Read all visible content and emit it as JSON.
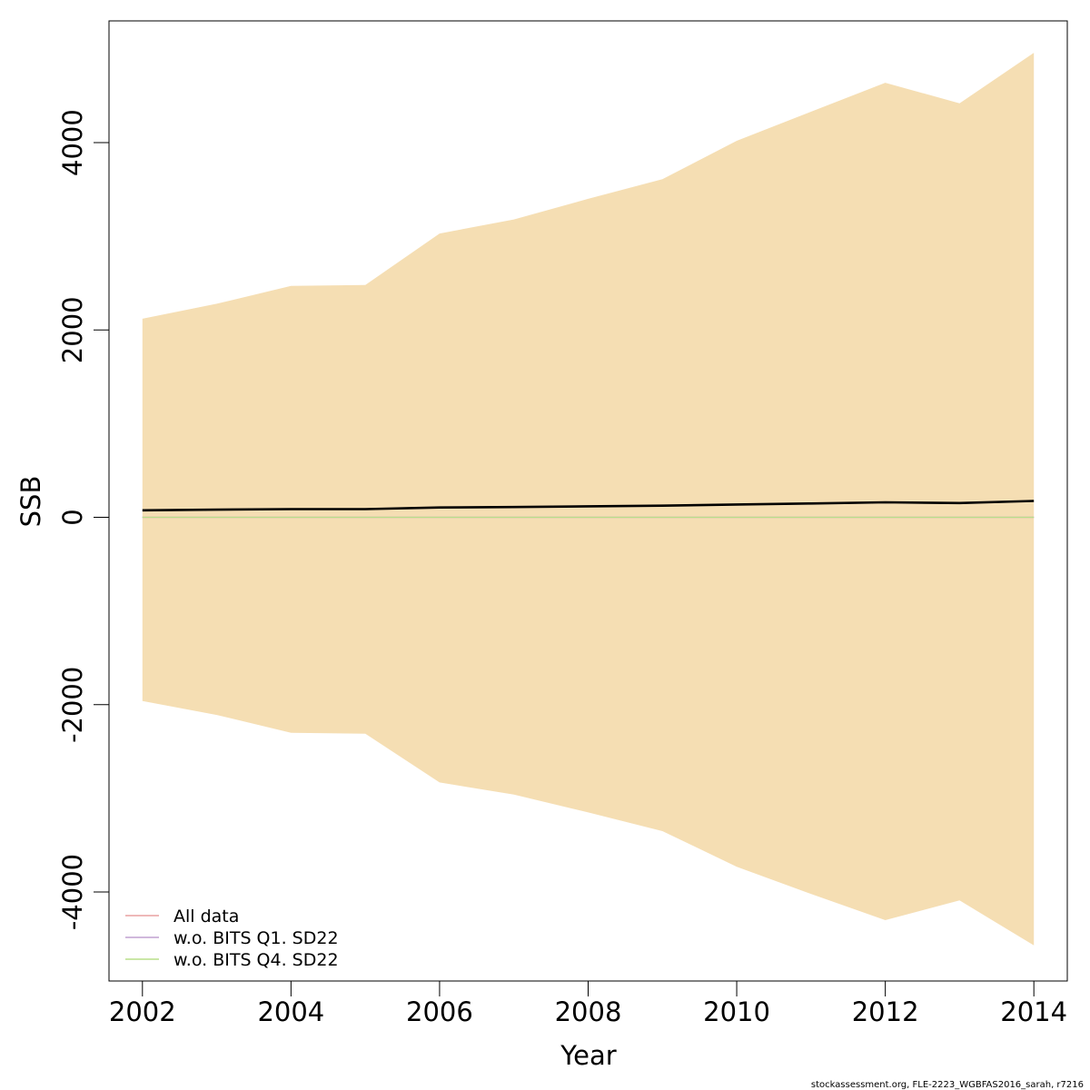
{
  "chart_data": {
    "type": "line",
    "title": "",
    "xlabel": "Year",
    "ylabel": "SSB",
    "xlim": [
      2001.55,
      2014.45
    ],
    "ylim": [
      -4950,
      5300
    ],
    "xticks": [
      2002,
      2004,
      2006,
      2008,
      2010,
      2012,
      2014
    ],
    "xtick_labels": [
      "2002",
      "2004",
      "2006",
      "2008",
      "2010",
      "2012",
      "2014"
    ],
    "yticks": [
      -4000,
      -2000,
      0,
      2000,
      4000
    ],
    "ytick_labels": [
      "-4000",
      "-2000",
      "0",
      "2000",
      "4000"
    ],
    "grid": false,
    "legend_position": "bottom-left",
    "band": {
      "color": "#f5deb3",
      "x": [
        2002,
        2003,
        2004,
        2005,
        2006,
        2007,
        2008,
        2009,
        2010,
        2011,
        2012,
        2013,
        2014
      ],
      "upper": [
        2120,
        2280,
        2470,
        2480,
        3030,
        3180,
        3400,
        3610,
        4020,
        4330,
        4640,
        4420,
        4960
      ],
      "lower": [
        -1960,
        -2110,
        -2300,
        -2310,
        -2830,
        -2960,
        -3150,
        -3350,
        -3730,
        -4020,
        -4300,
        -4090,
        -4570
      ]
    },
    "series": [
      {
        "color": "#000000",
        "x": [
          2002,
          2003,
          2004,
          2005,
          2006,
          2007,
          2008,
          2009,
          2010,
          2011,
          2012,
          2013,
          2014
        ],
        "values": [
          75,
          82,
          88,
          88,
          105,
          110,
          118,
          125,
          137,
          148,
          160,
          153,
          175
        ]
      },
      {
        "name": "All data",
        "color": "#e8a0a0",
        "x": [
          2002,
          2003,
          2004,
          2005,
          2006,
          2007,
          2008,
          2009,
          2010,
          2011,
          2012,
          2013,
          2014
        ],
        "values": [
          0,
          0,
          0,
          0,
          0,
          0,
          0,
          0,
          0,
          0,
          0,
          0,
          0
        ]
      },
      {
        "name": "w.o. BITS Q1. SD22",
        "color": "#c0a0d0",
        "x": [
          2002,
          2003,
          2004,
          2005,
          2006,
          2007,
          2008,
          2009,
          2010,
          2011,
          2012,
          2013,
          2014
        ],
        "values": [
          0,
          0,
          0,
          0,
          0,
          0,
          0,
          0,
          0,
          0,
          0,
          0,
          0
        ]
      },
      {
        "name": "w.o. BITS Q4. SD22",
        "color": "#b8df8a",
        "x": [
          2002,
          2003,
          2004,
          2005,
          2006,
          2007,
          2008,
          2009,
          2010,
          2011,
          2012,
          2013,
          2014
        ],
        "values": [
          0,
          0,
          0,
          0,
          0,
          0,
          0,
          0,
          0,
          0,
          0,
          0,
          0
        ]
      }
    ],
    "legend": [
      {
        "label": "All data",
        "color": "#e8a0a0"
      },
      {
        "label": "w.o. BITS Q1. SD22",
        "color": "#c0a0d0"
      },
      {
        "label": "w.o. BITS Q4. SD22",
        "color": "#b8df8a"
      }
    ]
  },
  "footer": "stockassessment.org, FLE-2223_WGBFAS2016_sarah, r7216"
}
